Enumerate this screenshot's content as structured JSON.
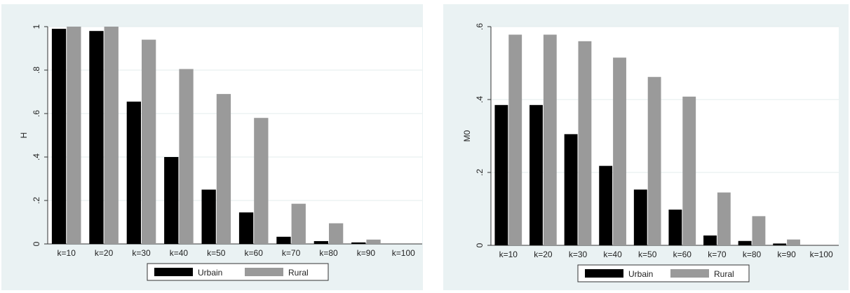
{
  "chart_data": [
    {
      "type": "bar",
      "ylabel": "H",
      "xlabel": "",
      "ylim": [
        0,
        1
      ],
      "yticks": [
        0,
        0.2,
        0.4,
        0.6,
        0.8,
        1
      ],
      "ytick_labels": [
        "0",
        ".2",
        ".4",
        ".6",
        ".8",
        "1"
      ],
      "categories": [
        "k=10",
        "k=20",
        "k=30",
        "k=40",
        "k=50",
        "k=60",
        "k=70",
        "k=80",
        "k=90",
        "k=100"
      ],
      "series": [
        {
          "name": "Urbain",
          "color": "#000000",
          "values": [
            0.99,
            0.98,
            0.655,
            0.4,
            0.25,
            0.145,
            0.033,
            0.013,
            0.007,
            0.0
          ]
        },
        {
          "name": "Rural",
          "color": "#9a9a9a",
          "values": [
            1.0,
            1.0,
            0.94,
            0.805,
            0.69,
            0.58,
            0.185,
            0.095,
            0.02,
            0.0
          ]
        }
      ],
      "grid": true,
      "legend": "bottom"
    },
    {
      "type": "bar",
      "ylabel": "M0",
      "xlabel": "",
      "ylim": [
        0,
        0.6
      ],
      "yticks": [
        0,
        0.2,
        0.4,
        0.6
      ],
      "ytick_labels": [
        "0",
        ".2",
        ".4",
        ".6"
      ],
      "categories": [
        "k=10",
        "k=20",
        "k=30",
        "k=40",
        "k=50",
        "k=60",
        "k=70",
        "k=80",
        "k=90",
        "k=100"
      ],
      "series": [
        {
          "name": "Urbain",
          "color": "#000000",
          "values": [
            0.385,
            0.385,
            0.305,
            0.218,
            0.153,
            0.098,
            0.027,
            0.012,
            0.005,
            0.0
          ]
        },
        {
          "name": "Rural",
          "color": "#9a9a9a",
          "values": [
            0.578,
            0.578,
            0.56,
            0.515,
            0.462,
            0.408,
            0.145,
            0.08,
            0.016,
            0.0
          ]
        }
      ],
      "grid": true,
      "legend": "bottom"
    }
  ]
}
